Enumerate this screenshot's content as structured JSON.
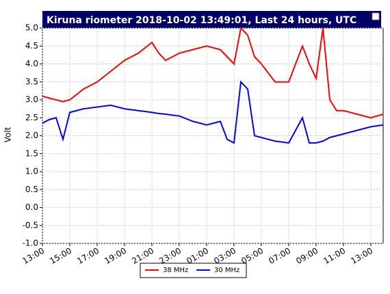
{
  "chart_data": {
    "type": "line",
    "title": "Kiruna riometer 2018-10-02 13:49:01, Last 24 hours, UTC",
    "y_label": "Volt",
    "x": [
      0,
      0.5,
      1,
      1.5,
      2,
      3,
      4,
      5,
      6,
      7,
      8,
      8.5,
      9,
      10,
      11,
      12,
      13,
      13.5,
      14,
      14.5,
      15,
      15.5,
      16,
      17,
      18,
      19,
      19.5,
      20,
      20.5,
      21,
      21.5,
      22,
      23,
      24,
      24.9
    ],
    "series": [
      {
        "name": "38 MHz",
        "color": "#ff0000",
        "values": [
          3.1,
          3.05,
          3.0,
          2.95,
          3.0,
          3.3,
          3.5,
          3.8,
          4.1,
          4.3,
          4.6,
          4.3,
          4.1,
          4.3,
          4.4,
          4.5,
          4.4,
          4.2,
          4.0,
          5.0,
          4.8,
          4.2,
          4.0,
          3.5,
          3.5,
          4.5,
          4.0,
          3.6,
          5.0,
          3.0,
          2.7,
          2.7,
          2.6,
          2.5,
          2.6
        ]
      },
      {
        "name": "30 MHz",
        "color": "#0000ff",
        "values": [
          2.35,
          2.45,
          2.5,
          1.9,
          2.65,
          2.75,
          2.8,
          2.85,
          2.75,
          2.7,
          2.65,
          2.62,
          2.6,
          2.55,
          2.4,
          2.3,
          2.4,
          1.9,
          1.8,
          3.5,
          3.3,
          2.0,
          1.95,
          1.85,
          1.8,
          2.5,
          1.8,
          1.8,
          1.85,
          1.95,
          2.0,
          2.05,
          2.15,
          2.25,
          2.3
        ]
      }
    ],
    "xlim": [
      0,
      24.9
    ],
    "xticks": [
      {
        "value": 0,
        "label": "13:00"
      },
      {
        "value": 2,
        "label": "15:00"
      },
      {
        "value": 4,
        "label": "17:00"
      },
      {
        "value": 6,
        "label": "19:00"
      },
      {
        "value": 8,
        "label": "21:00"
      },
      {
        "value": 10,
        "label": "23:00"
      },
      {
        "value": 12,
        "label": "01:00"
      },
      {
        "value": 14,
        "label": "03:00"
      },
      {
        "value": 16,
        "label": "05:00"
      },
      {
        "value": 18,
        "label": "07:00"
      },
      {
        "value": 20,
        "label": "09:00"
      },
      {
        "value": 22,
        "label": "11:00"
      },
      {
        "value": 24,
        "label": "13:00"
      }
    ],
    "ylim": [
      -1,
      5
    ],
    "yticks": [
      {
        "value": -1,
        "label": "-1.0"
      },
      {
        "value": -0.5,
        "label": "-0.5"
      },
      {
        "value": 0,
        "label": "0.0"
      },
      {
        "value": 0.5,
        "label": "0.5"
      },
      {
        "value": 1,
        "label": "1.0"
      },
      {
        "value": 1.5,
        "label": "1.5"
      },
      {
        "value": 2,
        "label": "2.0"
      },
      {
        "value": 2.5,
        "label": "2.5"
      },
      {
        "value": 3,
        "label": "3.0"
      },
      {
        "value": 3.5,
        "label": "3.5"
      },
      {
        "value": 4,
        "label": "4.0"
      },
      {
        "value": 4.5,
        "label": "4.5"
      },
      {
        "value": 5,
        "label": "5.0"
      }
    ],
    "grid": true
  }
}
